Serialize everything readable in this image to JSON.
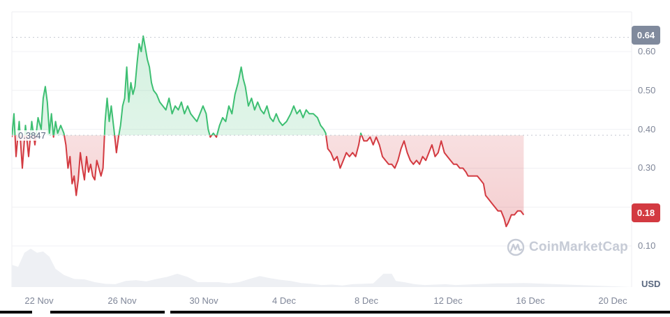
{
  "chart_data": {
    "type": "line",
    "title": "",
    "xlabel": "",
    "ylabel": "USD",
    "currency_label": "USD",
    "ylim": [
      0.0,
      0.68
    ],
    "grid": true,
    "legend": "none",
    "y_ticks": [
      "0.10",
      "0.30",
      "0.40",
      "0.50",
      "0.60"
    ],
    "x_ticks": [
      "22 Nov",
      "26 Nov",
      "30 Nov",
      "4 Dec",
      "8 Dec",
      "12 Dec",
      "16 Dec",
      "20 Dec"
    ],
    "open_price": 0.3847,
    "open_price_label": "0.3847",
    "max_price_label": "0.64",
    "current_price_label": "0.18",
    "colors": {
      "up": "#3dbf72",
      "down": "#d33a41",
      "max_badge": "#808a9d",
      "current_badge": "#d33a41",
      "volume": "#eef0f4"
    },
    "series": [
      {
        "name": "Price",
        "points_day_value": [
          [
            0.0,
            0.38
          ],
          [
            0.1,
            0.44
          ],
          [
            0.2,
            0.33
          ],
          [
            0.35,
            0.42
          ],
          [
            0.5,
            0.3
          ],
          [
            0.65,
            0.41
          ],
          [
            0.8,
            0.33
          ],
          [
            0.95,
            0.42
          ],
          [
            1.1,
            0.36
          ],
          [
            1.25,
            0.43
          ],
          [
            1.4,
            0.4
          ],
          [
            1.5,
            0.48
          ],
          [
            1.6,
            0.51
          ],
          [
            1.7,
            0.47
          ],
          [
            1.8,
            0.39
          ],
          [
            1.9,
            0.44
          ],
          [
            2.0,
            0.38
          ],
          [
            2.1,
            0.42
          ],
          [
            2.2,
            0.39
          ],
          [
            2.35,
            0.41
          ],
          [
            2.5,
            0.39
          ],
          [
            2.6,
            0.36
          ],
          [
            2.7,
            0.3
          ],
          [
            2.8,
            0.33
          ],
          [
            2.9,
            0.26
          ],
          [
            3.0,
            0.28
          ],
          [
            3.1,
            0.23
          ],
          [
            3.2,
            0.27
          ],
          [
            3.3,
            0.34
          ],
          [
            3.4,
            0.3
          ],
          [
            3.5,
            0.27
          ],
          [
            3.6,
            0.33
          ],
          [
            3.7,
            0.29
          ],
          [
            3.8,
            0.31
          ],
          [
            3.9,
            0.28
          ],
          [
            4.0,
            0.27
          ],
          [
            4.1,
            0.32
          ],
          [
            4.2,
            0.3
          ],
          [
            4.3,
            0.28
          ],
          [
            4.4,
            0.3
          ],
          [
            4.5,
            0.42
          ],
          [
            4.6,
            0.48
          ],
          [
            4.7,
            0.42
          ],
          [
            4.8,
            0.46
          ],
          [
            4.95,
            0.39
          ],
          [
            5.05,
            0.34
          ],
          [
            5.15,
            0.38
          ],
          [
            5.25,
            0.41
          ],
          [
            5.35,
            0.46
          ],
          [
            5.45,
            0.48
          ],
          [
            5.55,
            0.56
          ],
          [
            5.65,
            0.47
          ],
          [
            5.75,
            0.52
          ],
          [
            5.85,
            0.49
          ],
          [
            5.95,
            0.51
          ],
          [
            6.05,
            0.57
          ],
          [
            6.15,
            0.62
          ],
          [
            6.25,
            0.6
          ],
          [
            6.35,
            0.64
          ],
          [
            6.45,
            0.61
          ],
          [
            6.55,
            0.58
          ],
          [
            6.65,
            0.56
          ],
          [
            6.75,
            0.52
          ],
          [
            6.85,
            0.5
          ],
          [
            7.0,
            0.49
          ],
          [
            7.15,
            0.47
          ],
          [
            7.3,
            0.46
          ],
          [
            7.45,
            0.45
          ],
          [
            7.6,
            0.48
          ],
          [
            7.75,
            0.44
          ],
          [
            7.9,
            0.46
          ],
          [
            8.05,
            0.45
          ],
          [
            8.2,
            0.47
          ],
          [
            8.35,
            0.44
          ],
          [
            8.5,
            0.46
          ],
          [
            8.65,
            0.44
          ],
          [
            8.8,
            0.43
          ],
          [
            8.95,
            0.42
          ],
          [
            9.1,
            0.44
          ],
          [
            9.25,
            0.46
          ],
          [
            9.4,
            0.44
          ],
          [
            9.5,
            0.4
          ],
          [
            9.6,
            0.38
          ],
          [
            9.75,
            0.39
          ],
          [
            9.9,
            0.38
          ],
          [
            10.05,
            0.41
          ],
          [
            10.2,
            0.43
          ],
          [
            10.35,
            0.42
          ],
          [
            10.5,
            0.46
          ],
          [
            10.65,
            0.44
          ],
          [
            10.8,
            0.49
          ],
          [
            10.95,
            0.52
          ],
          [
            11.1,
            0.56
          ],
          [
            11.2,
            0.53
          ],
          [
            11.3,
            0.51
          ],
          [
            11.45,
            0.46
          ],
          [
            11.6,
            0.48
          ],
          [
            11.75,
            0.45
          ],
          [
            11.9,
            0.47
          ],
          [
            12.05,
            0.45
          ],
          [
            12.2,
            0.44
          ],
          [
            12.35,
            0.46
          ],
          [
            12.5,
            0.43
          ],
          [
            12.65,
            0.42
          ],
          [
            12.8,
            0.44
          ],
          [
            12.95,
            0.42
          ],
          [
            13.1,
            0.41
          ],
          [
            13.3,
            0.42
          ],
          [
            13.5,
            0.44
          ],
          [
            13.65,
            0.46
          ],
          [
            13.8,
            0.44
          ],
          [
            13.95,
            0.45
          ],
          [
            14.1,
            0.43
          ],
          [
            14.25,
            0.45
          ],
          [
            14.4,
            0.44
          ],
          [
            14.6,
            0.44
          ],
          [
            14.8,
            0.43
          ],
          [
            14.95,
            0.41
          ],
          [
            15.1,
            0.4
          ],
          [
            15.2,
            0.39
          ],
          [
            15.3,
            0.35
          ],
          [
            15.45,
            0.34
          ],
          [
            15.6,
            0.32
          ],
          [
            15.75,
            0.33
          ],
          [
            15.9,
            0.3
          ],
          [
            16.05,
            0.32
          ],
          [
            16.2,
            0.34
          ],
          [
            16.35,
            0.33
          ],
          [
            16.5,
            0.34
          ],
          [
            16.65,
            0.33
          ],
          [
            16.8,
            0.36
          ],
          [
            16.9,
            0.39
          ],
          [
            17.05,
            0.37
          ],
          [
            17.2,
            0.37
          ],
          [
            17.35,
            0.38
          ],
          [
            17.5,
            0.36
          ],
          [
            17.65,
            0.38
          ],
          [
            17.8,
            0.36
          ],
          [
            17.95,
            0.33
          ],
          [
            18.1,
            0.32
          ],
          [
            18.25,
            0.31
          ],
          [
            18.4,
            0.31
          ],
          [
            18.55,
            0.3
          ],
          [
            18.7,
            0.32
          ],
          [
            18.85,
            0.35
          ],
          [
            19.0,
            0.37
          ],
          [
            19.15,
            0.34
          ],
          [
            19.3,
            0.32
          ],
          [
            19.45,
            0.31
          ],
          [
            19.6,
            0.32
          ],
          [
            19.75,
            0.31
          ],
          [
            19.9,
            0.33
          ],
          [
            20.05,
            0.32
          ],
          [
            20.2,
            0.34
          ],
          [
            20.35,
            0.36
          ],
          [
            20.5,
            0.33
          ],
          [
            20.65,
            0.34
          ],
          [
            20.8,
            0.37
          ],
          [
            20.95,
            0.34
          ],
          [
            21.1,
            0.33
          ],
          [
            21.25,
            0.32
          ],
          [
            21.4,
            0.31
          ],
          [
            21.55,
            0.31
          ],
          [
            21.7,
            0.3
          ],
          [
            21.85,
            0.3
          ],
          [
            22.0,
            0.29
          ],
          [
            22.1,
            0.28
          ],
          [
            22.25,
            0.28
          ],
          [
            22.4,
            0.28
          ],
          [
            22.55,
            0.28
          ],
          [
            22.7,
            0.27
          ],
          [
            22.85,
            0.26
          ],
          [
            22.95,
            0.23
          ],
          [
            23.1,
            0.22
          ],
          [
            23.25,
            0.21
          ],
          [
            23.4,
            0.2
          ],
          [
            23.55,
            0.19
          ],
          [
            23.7,
            0.19
          ],
          [
            23.85,
            0.17
          ],
          [
            23.95,
            0.15
          ],
          [
            24.05,
            0.16
          ],
          [
            24.2,
            0.18
          ],
          [
            24.35,
            0.18
          ],
          [
            24.5,
            0.19
          ],
          [
            24.65,
            0.19
          ],
          [
            24.8,
            0.18
          ]
        ]
      },
      {
        "name": "Volume (relative)",
        "points_day_value": [
          [
            0.0,
            0.55
          ],
          [
            0.3,
            0.5
          ],
          [
            0.6,
            0.85
          ],
          [
            0.9,
            0.95
          ],
          [
            1.2,
            0.85
          ],
          [
            1.5,
            0.88
          ],
          [
            1.8,
            0.75
          ],
          [
            2.1,
            0.45
          ],
          [
            2.5,
            0.3
          ],
          [
            3.0,
            0.2
          ],
          [
            3.5,
            0.19
          ],
          [
            4.0,
            0.12
          ],
          [
            4.5,
            0.08
          ],
          [
            5.0,
            0.07
          ],
          [
            5.5,
            0.15
          ],
          [
            6.0,
            0.17
          ],
          [
            6.5,
            0.14
          ],
          [
            7.0,
            0.2
          ],
          [
            7.5,
            0.25
          ],
          [
            8.0,
            0.33
          ],
          [
            8.5,
            0.25
          ],
          [
            9.0,
            0.12
          ],
          [
            9.5,
            0.12
          ],
          [
            10.0,
            0.12
          ],
          [
            10.5,
            0.09
          ],
          [
            11.0,
            0.12
          ],
          [
            11.5,
            0.2
          ],
          [
            12.0,
            0.27
          ],
          [
            12.5,
            0.22
          ],
          [
            13.0,
            0.18
          ],
          [
            13.5,
            0.15
          ],
          [
            14.0,
            0.1
          ],
          [
            14.5,
            0.08
          ],
          [
            15.0,
            0.05
          ],
          [
            15.5,
            0.06
          ],
          [
            16.0,
            0.04
          ],
          [
            16.5,
            0.07
          ],
          [
            17.0,
            0.08
          ],
          [
            17.5,
            0.09
          ],
          [
            18.0,
            0.33
          ],
          [
            18.4,
            0.33
          ],
          [
            18.6,
            0.15
          ],
          [
            19.0,
            0.12
          ],
          [
            19.5,
            0.07
          ],
          [
            20.0,
            0.05
          ],
          [
            20.5,
            0.06
          ],
          [
            21.0,
            0.07
          ],
          [
            21.5,
            0.05
          ],
          [
            22.0,
            0.06
          ],
          [
            22.5,
            0.07
          ],
          [
            23.0,
            0.08
          ],
          [
            23.5,
            0.09
          ],
          [
            24.0,
            0.09
          ],
          [
            24.8,
            0.1
          ]
        ]
      }
    ]
  },
  "axis": {
    "y_labels": [
      {
        "label": "0.60",
        "value": 0.6
      },
      {
        "label": "0.50",
        "value": 0.5
      },
      {
        "label": "0.40",
        "value": 0.4
      },
      {
        "label": "0.30",
        "value": 0.3
      },
      {
        "label": "0.10",
        "value": 0.1
      }
    ],
    "x_labels": [
      "22 Nov",
      "26 Nov",
      "30 Nov",
      "4 Dec",
      "8 Dec",
      "12 Dec",
      "16 Dec",
      "20 Dec"
    ],
    "currency": "USD"
  },
  "badges": {
    "max": "0.64",
    "current": "0.18",
    "open": "0.3847"
  },
  "watermark": {
    "text": "CoinMarketCap"
  }
}
